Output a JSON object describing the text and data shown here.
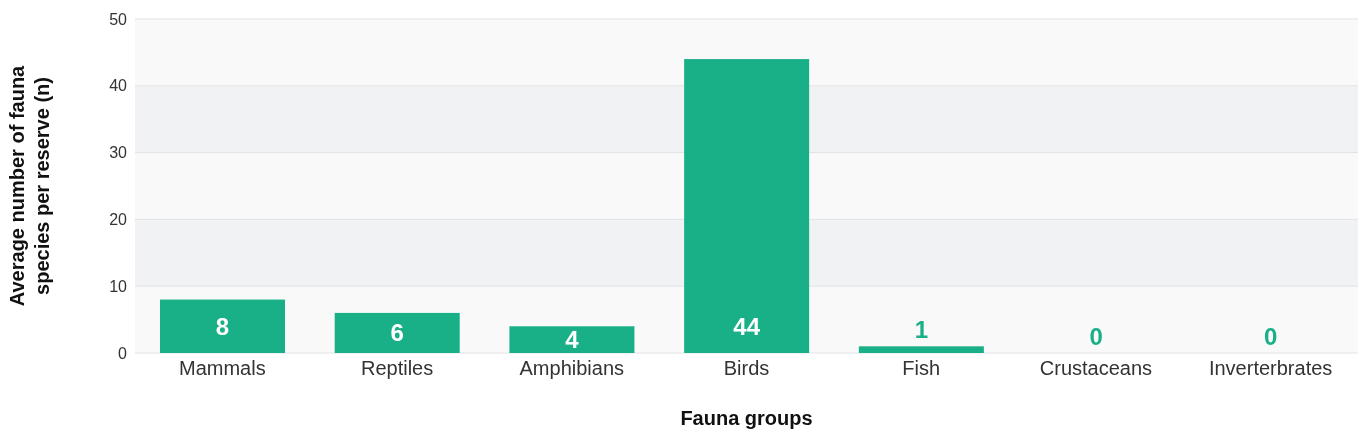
{
  "chart_data": {
    "type": "bar",
    "xlabel": "Fauna groups",
    "ylabel": "Average number of fauna species per reserve (n)",
    "categories": [
      "Mammals",
      "Reptiles",
      "Amphibians",
      "Birds",
      "Fish",
      "Crustaceans",
      "Inverterbrates"
    ],
    "values": [
      8,
      6,
      4,
      44,
      1,
      0,
      0
    ],
    "color": "#19b088",
    "ylim": [
      0,
      50
    ],
    "yticks": [
      0,
      10,
      20,
      30,
      40,
      50
    ],
    "grid": "y",
    "data_labels": true
  }
}
